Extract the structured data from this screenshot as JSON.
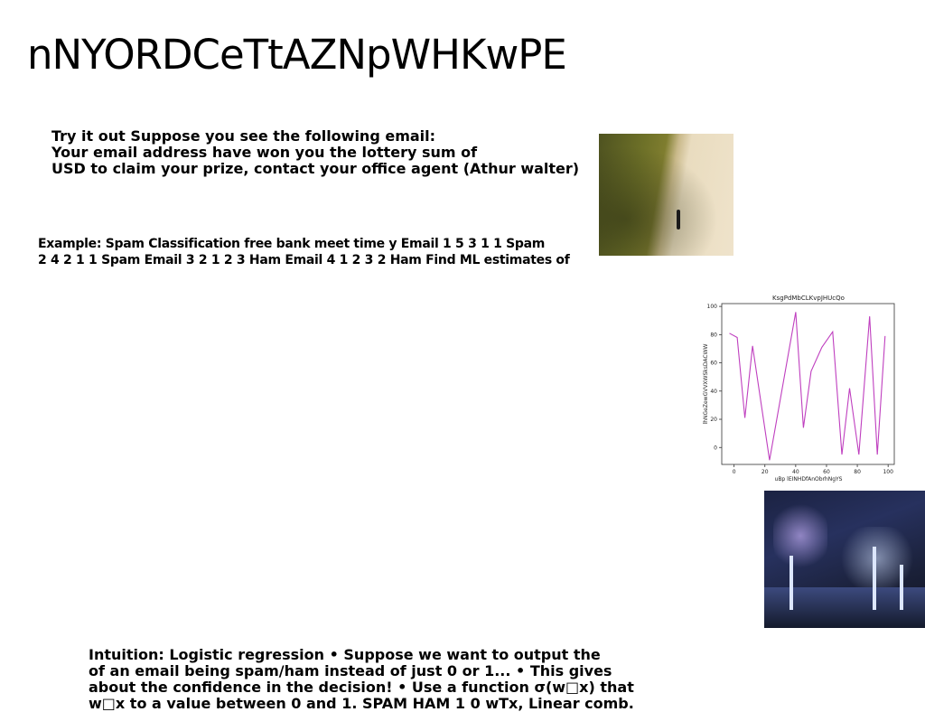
{
  "slide": {
    "title": "nNYORDCeTtAZNpWHKwPE"
  },
  "blocks": {
    "tryit": [
      "Try it out Suppose you see the following email:",
      "Your email address have won you the lottery sum of",
      "USD to claim your prize, contact your office agent (Athur walter)"
    ],
    "example": [
      "Example: Spam Classification free bank meet time y Email 1 5 3 1 1 Spam",
      "2 4 2 1 1 Spam Email 3 2 1 2 3 Ham Email 4 1 2 3 2 Ham Find ML estimates of"
    ],
    "intuition": [
      "Intuition: Logistic regression • Suppose we want to output the",
      "of an email being spam/ham instead of just 0 or 1... • This gives",
      "about the confidence in the decision! • Use a function σ(w□x) that",
      "w□x to a value between 0 and 1. SPAM HAM 1 0 wTx, Linear comb."
    ]
  },
  "images": {
    "beach": "aerial-beach-photo",
    "party": "party-toast-photo"
  },
  "chart_data": {
    "type": "line",
    "title": "KsgPdMbCLKvpJHUcQo",
    "xlabel": "uBp lEINHDfAnObrhNgYS",
    "ylabel": "lhNGeZewGVVXWSksDACWW",
    "xlim": [
      -8,
      104
    ],
    "ylim": [
      -12,
      102
    ],
    "xticks": [
      0,
      20,
      40,
      60,
      80,
      100
    ],
    "yticks": [
      0,
      20,
      40,
      60,
      80,
      100
    ],
    "grid": false,
    "color": "#bf3fbf",
    "series": [
      {
        "x": [
          -3,
          2,
          7,
          12,
          23,
          40,
          45,
          50,
          57,
          64,
          70,
          75,
          81,
          88,
          93,
          98
        ],
        "values": [
          81,
          78,
          21,
          72,
          -9,
          96,
          14,
          54,
          71,
          82,
          -5,
          42,
          -5,
          93,
          -5,
          79
        ]
      }
    ]
  }
}
